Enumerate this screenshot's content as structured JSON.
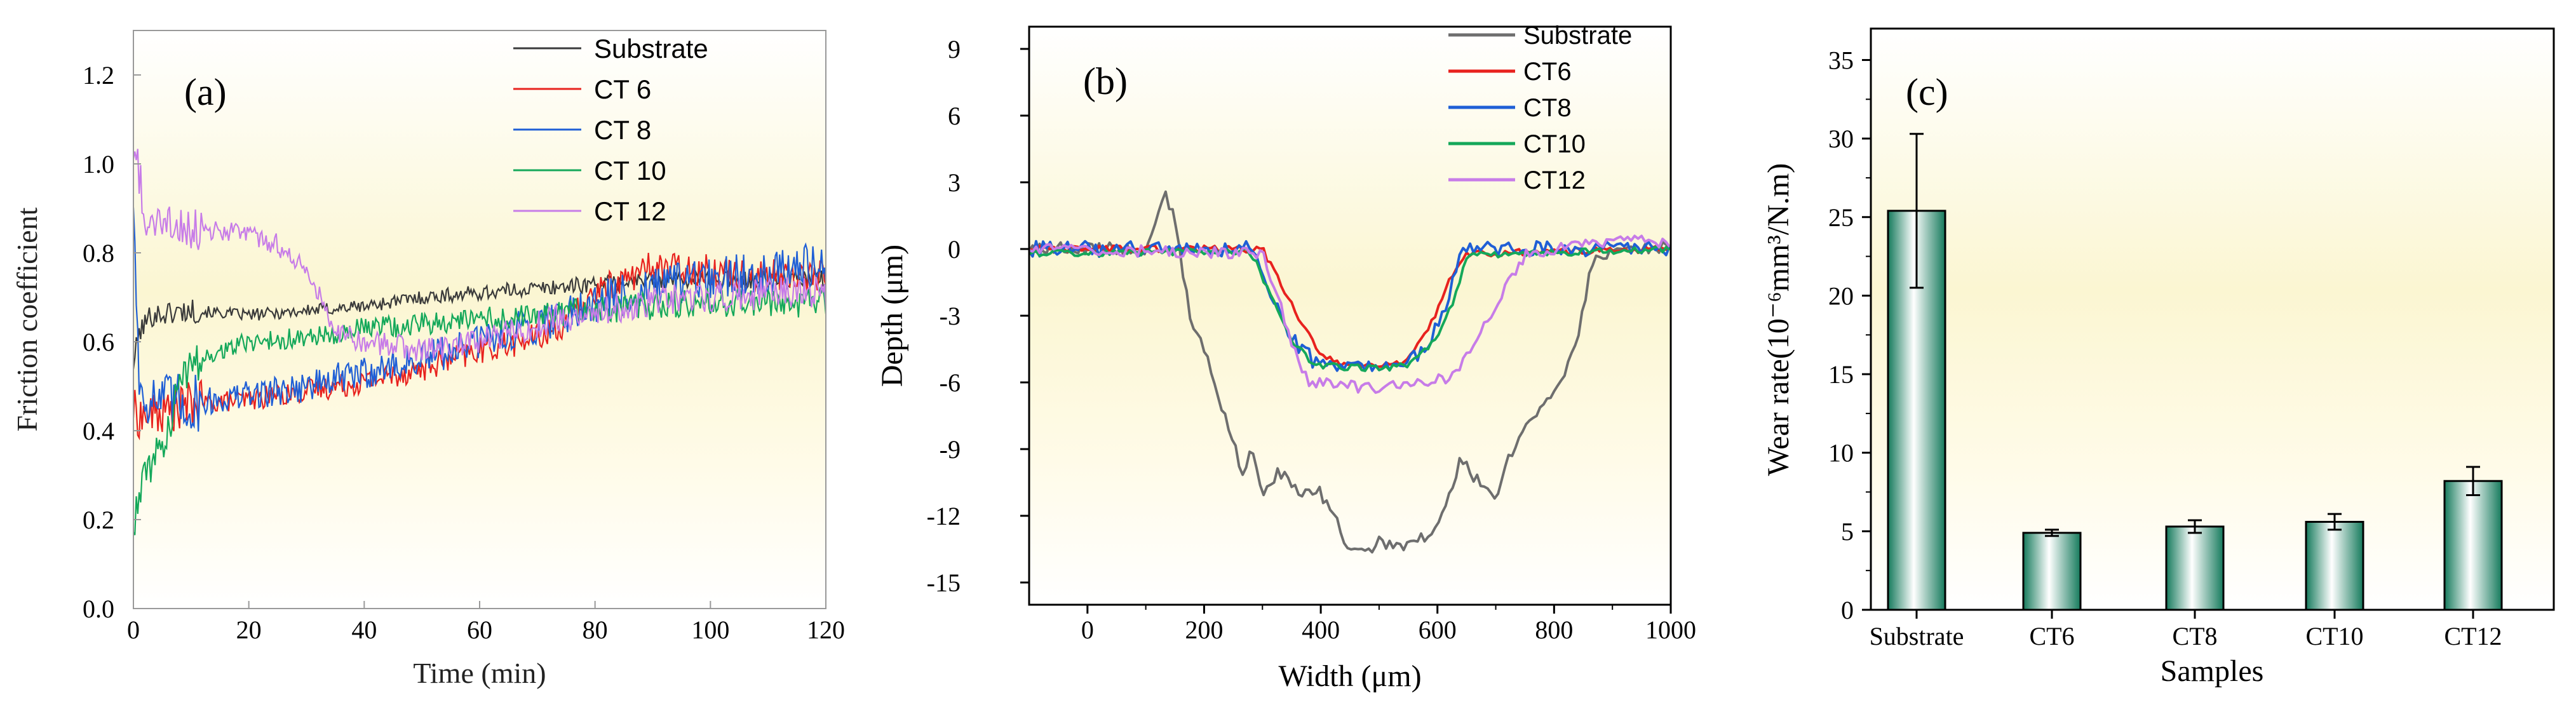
{
  "chart_data": [
    {
      "type": "line",
      "panel_label": "(a)",
      "xlabel": "Time (min)",
      "ylabel": "Friction coefficient",
      "xlim": [
        0,
        120
      ],
      "ylim": [
        0,
        1.3
      ],
      "xticks": [
        0,
        20,
        40,
        60,
        80,
        100,
        120
      ],
      "yticks": [
        "0.0",
        "0.2",
        "0.4",
        "0.6",
        "0.8",
        "1.0",
        "1.2"
      ],
      "legend_position": "top-right",
      "series": [
        {
          "name": "Substrate",
          "color": "#3a3a3a",
          "noise": 0.012,
          "points": [
            [
              0,
              0.55
            ],
            [
              1,
              0.62
            ],
            [
              3,
              0.66
            ],
            [
              10,
              0.67
            ],
            [
              20,
              0.66
            ],
            [
              30,
              0.67
            ],
            [
              40,
              0.68
            ],
            [
              50,
              0.7
            ],
            [
              60,
              0.71
            ],
            [
              70,
              0.72
            ],
            [
              80,
              0.73
            ],
            [
              90,
              0.74
            ],
            [
              100,
              0.74
            ],
            [
              110,
              0.74
            ],
            [
              120,
              0.74
            ]
          ]
        },
        {
          "name": "CT 6",
          "color": "#e8221e",
          "noise": 0.022,
          "points": [
            [
              0,
              0.45
            ],
            [
              1,
              0.43
            ],
            [
              5,
              0.44
            ],
            [
              10,
              0.46
            ],
            [
              20,
              0.47
            ],
            [
              30,
              0.49
            ],
            [
              40,
              0.51
            ],
            [
              50,
              0.54
            ],
            [
              60,
              0.58
            ],
            [
              70,
              0.61
            ],
            [
              75,
              0.64
            ],
            [
              80,
              0.71
            ],
            [
              90,
              0.77
            ],
            [
              100,
              0.76
            ],
            [
              110,
              0.75
            ],
            [
              120,
              0.75
            ]
          ]
        },
        {
          "name": "CT 8",
          "color": "#1f5fd6",
          "noise": 0.03,
          "points": [
            [
              0,
              0.93
            ],
            [
              1,
              0.5
            ],
            [
              3,
              0.47
            ],
            [
              10,
              0.46
            ],
            [
              20,
              0.48
            ],
            [
              30,
              0.5
            ],
            [
              40,
              0.53
            ],
            [
              50,
              0.56
            ],
            [
              60,
              0.6
            ],
            [
              70,
              0.64
            ],
            [
              80,
              0.69
            ],
            [
              90,
              0.72
            ],
            [
              100,
              0.74
            ],
            [
              110,
              0.76
            ],
            [
              120,
              0.77
            ]
          ]
        },
        {
          "name": "CT 10",
          "color": "#14a85a",
          "noise": 0.02,
          "points": [
            [
              0,
              0.19
            ],
            [
              2,
              0.3
            ],
            [
              4,
              0.34
            ],
            [
              6,
              0.4
            ],
            [
              8,
              0.5
            ],
            [
              10,
              0.55
            ],
            [
              15,
              0.58
            ],
            [
              20,
              0.6
            ],
            [
              30,
              0.61
            ],
            [
              40,
              0.63
            ],
            [
              50,
              0.64
            ],
            [
              60,
              0.65
            ],
            [
              70,
              0.66
            ],
            [
              80,
              0.67
            ],
            [
              90,
              0.68
            ],
            [
              100,
              0.69
            ],
            [
              110,
              0.69
            ],
            [
              120,
              0.69
            ]
          ]
        },
        {
          "name": "CT 12",
          "color": "#c77ce8",
          "noise": 0.022,
          "points": [
            [
              0,
              1.03
            ],
            [
              1,
              0.98
            ],
            [
              2,
              0.86
            ],
            [
              10,
              0.86
            ],
            [
              20,
              0.84
            ],
            [
              25,
              0.82
            ],
            [
              30,
              0.76
            ],
            [
              35,
              0.63
            ],
            [
              40,
              0.6
            ],
            [
              50,
              0.58
            ],
            [
              60,
              0.6
            ],
            [
              70,
              0.64
            ],
            [
              80,
              0.67
            ],
            [
              90,
              0.69
            ],
            [
              100,
              0.7
            ],
            [
              110,
              0.71
            ],
            [
              120,
              0.71
            ]
          ]
        }
      ]
    },
    {
      "type": "line",
      "panel_label": "(b)",
      "xlabel": "Width (μm)",
      "ylabel": "Depth (μm)",
      "xlim": [
        -100,
        1000
      ],
      "ylim": [
        -16,
        10
      ],
      "xticks": [
        0,
        200,
        400,
        600,
        800,
        1000
      ],
      "yticks": [
        9,
        6,
        3,
        0,
        -3,
        -6,
        -9,
        -12,
        -15
      ],
      "legend_position": "top-right",
      "series": [
        {
          "name": "Substrate",
          "color": "#6e6e6e",
          "noise": 0.3,
          "points": [
            [
              -100,
              0
            ],
            [
              100,
              0
            ],
            [
              130,
              2.5
            ],
            [
              150,
              1.5
            ],
            [
              175,
              -3
            ],
            [
              210,
              -5.2
            ],
            [
              240,
              -8
            ],
            [
              265,
              -10
            ],
            [
              280,
              -9
            ],
            [
              300,
              -11
            ],
            [
              330,
              -10
            ],
            [
              360,
              -11
            ],
            [
              400,
              -11
            ],
            [
              420,
              -12
            ],
            [
              450,
              -13.5
            ],
            [
              480,
              -13.8
            ],
            [
              500,
              -13
            ],
            [
              530,
              -13.5
            ],
            [
              560,
              -13.2
            ],
            [
              600,
              -12.5
            ],
            [
              640,
              -9.5
            ],
            [
              670,
              -10.5
            ],
            [
              700,
              -11
            ],
            [
              730,
              -9
            ],
            [
              780,
              -7
            ],
            [
              810,
              -6
            ],
            [
              840,
              -4
            ],
            [
              870,
              0
            ],
            [
              890,
              -0.3
            ],
            [
              1000,
              0.1
            ]
          ]
        },
        {
          "name": "CT6",
          "color": "#e8221e",
          "noise": 0.15,
          "points": [
            [
              -100,
              0
            ],
            [
              300,
              0
            ],
            [
              330,
              -1.5
            ],
            [
              370,
              -3.5
            ],
            [
              400,
              -4.7
            ],
            [
              440,
              -5.2
            ],
            [
              500,
              -5.3
            ],
            [
              540,
              -5.1
            ],
            [
              570,
              -4.2
            ],
            [
              600,
              -2.8
            ],
            [
              620,
              -1.5
            ],
            [
              650,
              -0.2
            ],
            [
              1000,
              0
            ]
          ]
        },
        {
          "name": "CT8",
          "color": "#1f5fd6",
          "noise": 0.35,
          "points": [
            [
              -100,
              0
            ],
            [
              280,
              0
            ],
            [
              310,
              -1.8
            ],
            [
              350,
              -4
            ],
            [
              390,
              -5.1
            ],
            [
              440,
              -5.3
            ],
            [
              500,
              -5.4
            ],
            [
              550,
              -5.2
            ],
            [
              590,
              -4
            ],
            [
              620,
              -2.2
            ],
            [
              640,
              0
            ],
            [
              1000,
              0
            ]
          ]
        },
        {
          "name": "CT10",
          "color": "#14a85a",
          "noise": 0.15,
          "points": [
            [
              -100,
              -0.2
            ],
            [
              280,
              -0.1
            ],
            [
              310,
              -1.9
            ],
            [
              350,
              -4.2
            ],
            [
              390,
              -5.2
            ],
            [
              440,
              -5.3
            ],
            [
              500,
              -5.4
            ],
            [
              550,
              -5.2
            ],
            [
              600,
              -4
            ],
            [
              630,
              -2.2
            ],
            [
              650,
              -0.3
            ],
            [
              1000,
              0
            ]
          ]
        },
        {
          "name": "CT12",
          "color": "#c77ce8",
          "noise": 0.25,
          "points": [
            [
              -100,
              0
            ],
            [
              300,
              -0.2
            ],
            [
              330,
              -2.5
            ],
            [
              360,
              -5
            ],
            [
              380,
              -6
            ],
            [
              420,
              -6.1
            ],
            [
              500,
              -6.3
            ],
            [
              560,
              -6
            ],
            [
              620,
              -5.8
            ],
            [
              650,
              -4.8
            ],
            [
              680,
              -3.5
            ],
            [
              710,
              -2
            ],
            [
              750,
              -0.3
            ],
            [
              800,
              0
            ],
            [
              850,
              0.2
            ],
            [
              900,
              0.4
            ],
            [
              1000,
              0.3
            ]
          ]
        }
      ]
    },
    {
      "type": "bar",
      "panel_label": "(c)",
      "xlabel": "Samples",
      "ylabel": "Wear rate(10⁻⁶mm³/N.m)",
      "ylim": [
        0,
        37
      ],
      "yticks": [
        0,
        5,
        10,
        15,
        20,
        25,
        30,
        35
      ],
      "categories": [
        "Substrate",
        "CT6",
        "CT8",
        "CT10",
        "CT12"
      ],
      "values": [
        25.4,
        4.9,
        5.3,
        5.6,
        8.2
      ],
      "errors": [
        4.9,
        0.2,
        0.4,
        0.5,
        0.9
      ],
      "bar_color": "#1f8a6a"
    }
  ]
}
